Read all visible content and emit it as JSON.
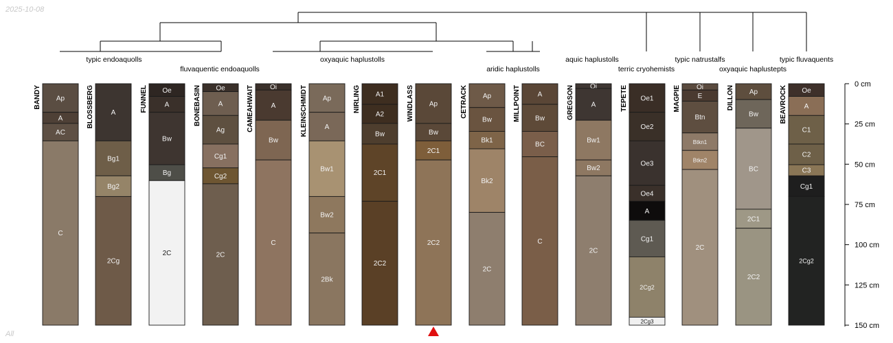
{
  "corner_text": {
    "date": "2025-10-08",
    "footer": "All"
  },
  "chart_data": {
    "type": "soil-profile-sketch",
    "title": "",
    "depth_unit": "cm",
    "depth_range": [
      0,
      150
    ],
    "depth_ticks": [
      0,
      25,
      50,
      75,
      100,
      125,
      150
    ],
    "depth_tick_labels": [
      "0 cm",
      "25 cm",
      "50 cm",
      "75 cm",
      "100 cm",
      "125 cm",
      "150 cm"
    ],
    "highlighted_profile": "WINDLASS",
    "profiles": [
      {
        "name": "BANDY",
        "taxon": "typic endoaquolls",
        "horizons": [
          {
            "name": "Ap",
            "top": 0,
            "bottom": 18,
            "color": "#5a4d42"
          },
          {
            "name": "A",
            "top": 18,
            "bottom": 25,
            "color": "#4e4036"
          },
          {
            "name": "AC",
            "top": 25,
            "bottom": 36,
            "color": "#5e5044"
          },
          {
            "name": "C",
            "top": 36,
            "bottom": 152,
            "color": "#8a7a68"
          }
        ]
      },
      {
        "name": "BLOSSBERG",
        "taxon": "typic endoaquolls",
        "horizons": [
          {
            "name": "A",
            "top": 0,
            "bottom": 36,
            "color": "#3d3530"
          },
          {
            "name": "Bg1",
            "top": 36,
            "bottom": 58,
            "color": "#6e5e48"
          },
          {
            "name": "Bg2",
            "top": 58,
            "bottom": 71,
            "color": "#958468"
          },
          {
            "name": "2Cg",
            "top": 71,
            "bottom": 152,
            "color": "#6e5a48"
          }
        ]
      },
      {
        "name": "FUNNEL",
        "taxon": "fluvaquentic endoaquolls",
        "horizons": [
          {
            "name": "Oe",
            "top": 0,
            "bottom": 8,
            "color": "#2e2622"
          },
          {
            "name": "A",
            "top": 8,
            "bottom": 18,
            "color": "#3a302a"
          },
          {
            "name": "Bw",
            "top": 18,
            "bottom": 51,
            "color": "#3e3530"
          },
          {
            "name": "Bg",
            "top": 51,
            "bottom": 61,
            "color": "#4e4e48"
          },
          {
            "name": "2C",
            "top": 61,
            "bottom": 152,
            "color": "#f2f2f2"
          }
        ]
      },
      {
        "name": "BONEBASIN",
        "taxon": "fluvaquentic endoaquolls",
        "horizons": [
          {
            "name": "Oe",
            "top": 0,
            "bottom": 5,
            "color": "#3a302a"
          },
          {
            "name": "A",
            "top": 5,
            "bottom": 20,
            "color": "#6e5e50"
          },
          {
            "name": "Ag",
            "top": 20,
            "bottom": 38,
            "color": "#5e5040"
          },
          {
            "name": "Cg1",
            "top": 38,
            "bottom": 53,
            "color": "#877060"
          },
          {
            "name": "Cg2",
            "top": 53,
            "bottom": 63,
            "color": "#6e5632"
          },
          {
            "name": "2C",
            "top": 63,
            "bottom": 152,
            "color": "#6e5e4e"
          }
        ]
      },
      {
        "name": "CAMEAHWAIT",
        "taxon": "oxyaquic haplustolls",
        "horizons": [
          {
            "name": "Oi",
            "top": 0,
            "bottom": 4,
            "color": "#3a302a"
          },
          {
            "name": "A",
            "top": 4,
            "bottom": 23,
            "color": "#4a3a30"
          },
          {
            "name": "Bw",
            "top": 23,
            "bottom": 48,
            "color": "#7e6652"
          },
          {
            "name": "C",
            "top": 48,
            "bottom": 152,
            "color": "#8e7460"
          }
        ]
      },
      {
        "name": "KLEINSCHMIDT",
        "taxon": "oxyaquic haplustolls",
        "horizons": [
          {
            "name": "Ap",
            "top": 0,
            "bottom": 18,
            "color": "#7a6a5a"
          },
          {
            "name": "A",
            "top": 18,
            "bottom": 36,
            "color": "#7a6858"
          },
          {
            "name": "Bw1",
            "top": 36,
            "bottom": 71,
            "color": "#a89272"
          },
          {
            "name": "Bw2",
            "top": 71,
            "bottom": 94,
            "color": "#8e785e"
          },
          {
            "name": "2Bk",
            "top": 94,
            "bottom": 152,
            "color": "#8a7660"
          }
        ]
      },
      {
        "name": "NIRLING",
        "taxon": "oxyaquic haplustolls",
        "horizons": [
          {
            "name": "A1",
            "top": 0,
            "bottom": 13,
            "color": "#3e2e20"
          },
          {
            "name": "A2",
            "top": 13,
            "bottom": 25,
            "color": "#3e2e20"
          },
          {
            "name": "Bw",
            "top": 25,
            "bottom": 38,
            "color": "#4e3e2e"
          },
          {
            "name": "2C1",
            "top": 38,
            "bottom": 74,
            "color": "#5e4428"
          },
          {
            "name": "2C2",
            "top": 74,
            "bottom": 152,
            "color": "#5a4026"
          }
        ]
      },
      {
        "name": "WINDLASS",
        "taxon": "oxyaquic haplustolls",
        "horizons": [
          {
            "name": "Ap",
            "top": 0,
            "bottom": 25,
            "color": "#5a4838"
          },
          {
            "name": "Bw",
            "top": 25,
            "bottom": 36,
            "color": "#5a4838"
          },
          {
            "name": "2C1",
            "top": 36,
            "bottom": 48,
            "color": "#7e5e3a"
          },
          {
            "name": "2C2",
            "top": 48,
            "bottom": 152,
            "color": "#8e7458"
          }
        ]
      },
      {
        "name": "CETRACK",
        "taxon": "aridic haplustolls",
        "horizons": [
          {
            "name": "Ap",
            "top": 0,
            "bottom": 15,
            "color": "#6e5a48"
          },
          {
            "name": "Bw",
            "top": 15,
            "bottom": 30,
            "color": "#6a5440"
          },
          {
            "name": "Bk1",
            "top": 30,
            "bottom": 41,
            "color": "#7e6448"
          },
          {
            "name": "Bk2",
            "top": 41,
            "bottom": 81,
            "color": "#9e8468"
          },
          {
            "name": "2C",
            "top": 81,
            "bottom": 152,
            "color": "#8e7e6e"
          }
        ]
      },
      {
        "name": "MILLPOINT",
        "taxon": "aridic haplustolls",
        "horizons": [
          {
            "name": "A",
            "top": 0,
            "bottom": 13,
            "color": "#5a4636"
          },
          {
            "name": "Bw",
            "top": 13,
            "bottom": 30,
            "color": "#5e4a38"
          },
          {
            "name": "BC",
            "top": 30,
            "bottom": 46,
            "color": "#7a5e4a"
          },
          {
            "name": "C",
            "top": 46,
            "bottom": 152,
            "color": "#7a5e48"
          }
        ]
      },
      {
        "name": "GREGSON",
        "taxon": "aquic haplustolls",
        "horizons": [
          {
            "name": "Oi",
            "top": 0,
            "bottom": 3,
            "color": "#3e3632"
          },
          {
            "name": "A",
            "top": 3,
            "bottom": 23,
            "color": "#3e3632"
          },
          {
            "name": "Bw1",
            "top": 23,
            "bottom": 48,
            "color": "#8e7862"
          },
          {
            "name": "Bw2",
            "top": 48,
            "bottom": 58,
            "color": "#8e7862"
          },
          {
            "name": "2C",
            "top": 58,
            "bottom": 152,
            "color": "#8e7e6e"
          }
        ]
      },
      {
        "name": "TEPETE",
        "taxon": "terric cryohemists",
        "horizons": [
          {
            "name": "Oe1",
            "top": 0,
            "bottom": 18,
            "color": "#3a2e26"
          },
          {
            "name": "Oe2",
            "top": 18,
            "bottom": 36,
            "color": "#3a3028"
          },
          {
            "name": "Oe3",
            "top": 36,
            "bottom": 64,
            "color": "#3a322e"
          },
          {
            "name": "Oe4",
            "top": 64,
            "bottom": 74,
            "color": "#3a302a"
          },
          {
            "name": "A",
            "top": 74,
            "bottom": 86,
            "color": "#0e0c0c"
          },
          {
            "name": "Cg1",
            "top": 86,
            "bottom": 109,
            "color": "#5e5a52"
          },
          {
            "name": "2Cg2",
            "top": 109,
            "bottom": 147,
            "color": "#8e826a"
          },
          {
            "name": "2Cg3",
            "top": 147,
            "bottom": 152,
            "color": "#f0f0f0"
          }
        ]
      },
      {
        "name": "MAGPIE",
        "taxon": "typic natrustalfs",
        "horizons": [
          {
            "name": "Oi",
            "top": 0,
            "bottom": 4,
            "color": "#5a4a3e"
          },
          {
            "name": "E",
            "top": 4,
            "bottom": 11,
            "color": "#4a3a30"
          },
          {
            "name": "Btn",
            "top": 11,
            "bottom": 31,
            "color": "#5e4e40"
          },
          {
            "name": "Btkn1",
            "top": 31,
            "bottom": 42,
            "color": "#8e7a68"
          },
          {
            "name": "Btkn2",
            "top": 42,
            "bottom": 54,
            "color": "#a08468"
          },
          {
            "name": "2C",
            "top": 54,
            "bottom": 152,
            "color": "#a0907e"
          }
        ]
      },
      {
        "name": "DILLON",
        "taxon": "oxyaquic haplustepts",
        "horizons": [
          {
            "name": "Ap",
            "top": 0,
            "bottom": 10,
            "color": "#5e4e3e"
          },
          {
            "name": "Bw",
            "top": 10,
            "bottom": 28,
            "color": "#6e665a"
          },
          {
            "name": "BC",
            "top": 28,
            "bottom": 79,
            "color": "#a0968a"
          },
          {
            "name": "2C1",
            "top": 79,
            "bottom": 91,
            "color": "#9e9886"
          },
          {
            "name": "2C2",
            "top": 91,
            "bottom": 152,
            "color": "#9a9482"
          }
        ]
      },
      {
        "name": "BEAVROCK",
        "taxon": "typic fluvaquents",
        "horizons": [
          {
            "name": "Oe",
            "top": 0,
            "bottom": 8,
            "color": "#3e302a"
          },
          {
            "name": "A",
            "top": 8,
            "bottom": 20,
            "color": "#8a6e56"
          },
          {
            "name": "C1",
            "top": 20,
            "bottom": 38,
            "color": "#6e6048"
          },
          {
            "name": "C2",
            "top": 38,
            "bottom": 51,
            "color": "#6e6048"
          },
          {
            "name": "C3",
            "top": 51,
            "bottom": 58,
            "color": "#8a7656"
          },
          {
            "name": "Cg1",
            "top": 58,
            "bottom": 71,
            "color": "#1e1e1e"
          },
          {
            "name": "2Cg2",
            "top": 71,
            "bottom": 152,
            "color": "#222322"
          }
        ]
      }
    ]
  }
}
